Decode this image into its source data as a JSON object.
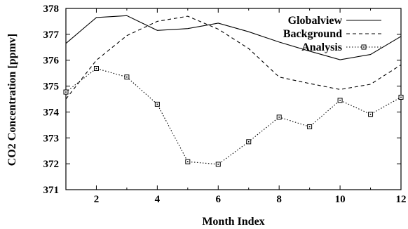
{
  "chart_data": {
    "type": "line",
    "title": "",
    "xlabel": "Month Index",
    "ylabel": "CO2 Concentration [ppmv]",
    "xlim": [
      1,
      12
    ],
    "ylim": [
      371,
      378
    ],
    "x_ticks": [
      2,
      4,
      6,
      8,
      10,
      12
    ],
    "y_ticks": [
      371,
      372,
      373,
      374,
      375,
      376,
      377,
      378
    ],
    "grid": false,
    "legend_position": "top-right",
    "x": [
      1,
      2,
      3,
      4,
      5,
      6,
      7,
      8,
      9,
      10,
      11,
      12
    ],
    "series": [
      {
        "name": "Globalview",
        "style": "solid",
        "marker": "none",
        "color": "#000000",
        "values": [
          376.65,
          377.65,
          377.72,
          377.15,
          377.22,
          377.43,
          377.1,
          376.7,
          376.35,
          376.02,
          376.22,
          376.92
        ]
      },
      {
        "name": "Background",
        "style": "dashed",
        "marker": "none",
        "color": "#000000",
        "values": [
          374.5,
          376.0,
          376.95,
          377.5,
          377.7,
          377.2,
          376.45,
          375.35,
          375.1,
          374.87,
          375.07,
          375.82
        ]
      },
      {
        "name": "Analysis",
        "style": "dotted",
        "marker": "square",
        "color": "#000000",
        "values": [
          374.77,
          375.68,
          375.35,
          374.3,
          372.08,
          371.98,
          372.85,
          373.8,
          373.43,
          374.45,
          373.91,
          374.57
        ]
      }
    ]
  }
}
